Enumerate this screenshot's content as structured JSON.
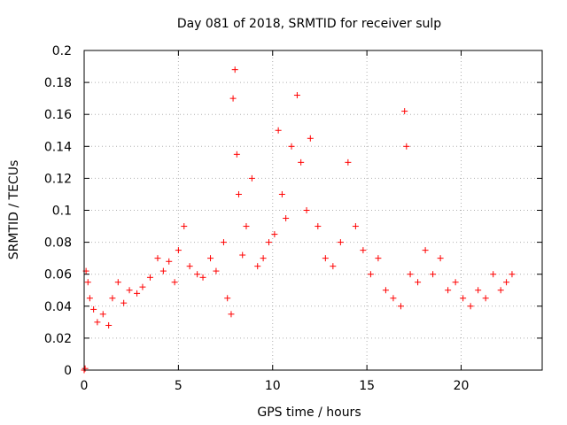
{
  "chart_data": {
    "type": "scatter",
    "title": "Day 081 of 2018, SRMTID for receiver sulp",
    "xlabel": "GPS time / hours",
    "ylabel": "SRMTID / TECUs",
    "xlim": [
      0,
      24.3
    ],
    "ylim": [
      0,
      0.2
    ],
    "xticks": [
      0,
      5,
      10,
      15,
      20
    ],
    "xtick_labels": [
      "0",
      "5",
      "10",
      "15",
      "20"
    ],
    "yticks": [
      0,
      0.02,
      0.04,
      0.06,
      0.08,
      0.1,
      0.12,
      0.14,
      0.16,
      0.18,
      0.2
    ],
    "ytick_labels": [
      "0",
      "0.02",
      "0.04",
      "0.06",
      "0.08",
      "0.1",
      "0.12",
      "0.14",
      "0.16",
      "0.18",
      "0.2"
    ],
    "grid": true,
    "marker": "+",
    "color": "#ff0000",
    "series": [
      {
        "name": "SRMTID",
        "x": [
          0.0,
          0.05,
          0.1,
          0.2,
          0.3,
          0.5,
          0.7,
          1.0,
          1.3,
          1.5,
          1.8,
          2.1,
          2.4,
          2.8,
          3.1,
          3.5,
          3.9,
          4.2,
          4.5,
          4.8,
          5.0,
          5.3,
          5.6,
          6.0,
          6.3,
          6.7,
          7.0,
          7.4,
          7.6,
          7.8,
          7.9,
          8.0,
          8.1,
          8.2,
          8.4,
          8.6,
          8.9,
          9.2,
          9.5,
          9.8,
          10.1,
          10.3,
          10.5,
          10.7,
          11.0,
          11.3,
          11.5,
          11.8,
          12.0,
          12.4,
          12.8,
          13.2,
          13.6,
          14.0,
          14.4,
          14.8,
          15.2,
          15.6,
          16.0,
          16.4,
          16.8,
          17.0,
          17.1,
          17.3,
          17.7,
          18.1,
          18.5,
          18.9,
          19.3,
          19.7,
          20.1,
          20.5,
          20.9,
          21.3,
          21.7,
          22.1,
          22.4,
          22.7
        ],
        "y": [
          0.0,
          0.001,
          0.062,
          0.055,
          0.045,
          0.038,
          0.03,
          0.035,
          0.028,
          0.045,
          0.055,
          0.042,
          0.05,
          0.048,
          0.052,
          0.058,
          0.07,
          0.062,
          0.068,
          0.055,
          0.075,
          0.09,
          0.065,
          0.06,
          0.058,
          0.07,
          0.062,
          0.08,
          0.045,
          0.035,
          0.17,
          0.188,
          0.135,
          0.11,
          0.072,
          0.09,
          0.12,
          0.065,
          0.07,
          0.08,
          0.085,
          0.15,
          0.11,
          0.095,
          0.14,
          0.172,
          0.13,
          0.1,
          0.145,
          0.09,
          0.07,
          0.065,
          0.08,
          0.13,
          0.09,
          0.075,
          0.06,
          0.07,
          0.05,
          0.045,
          0.04,
          0.162,
          0.14,
          0.06,
          0.055,
          0.075,
          0.06,
          0.07,
          0.05,
          0.055,
          0.045,
          0.04,
          0.05,
          0.045,
          0.06,
          0.05,
          0.055,
          0.06
        ]
      }
    ]
  }
}
